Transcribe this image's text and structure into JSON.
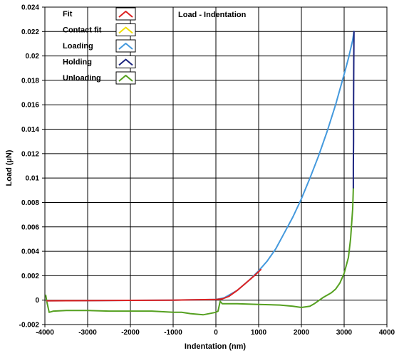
{
  "chart_data": {
    "type": "line",
    "title": "Load - Indentation",
    "xlabel": "Indentation (nm)",
    "ylabel": "Load (µN)",
    "xlim": [
      -4000,
      4000
    ],
    "ylim": [
      -0.002,
      0.024
    ],
    "xticks": [
      -4000,
      -3000,
      -2000,
      -1000,
      0,
      1000,
      2000,
      3000,
      4000
    ],
    "xtick_labels": [
      "-4000",
      "-3000",
      "-2000",
      "-1000",
      "0",
      "1000",
      "2000",
      "3000",
      "4000"
    ],
    "yticks": [
      -0.002,
      0,
      0.002,
      0.004,
      0.006,
      0.008,
      0.01,
      0.012,
      0.014,
      0.016,
      0.018,
      0.02,
      0.022,
      0.024
    ],
    "ytick_labels": [
      "-0.002",
      "0",
      "0.002",
      "0.004",
      "0.006",
      "0.008",
      "0.01",
      "0.012",
      "0.014",
      "0.016",
      "0.018",
      "0.02",
      "0.022",
      "0.024"
    ],
    "grid": true,
    "legend_position": "top-left",
    "series": [
      {
        "name": "Fit",
        "color": "#dd2222",
        "x": [
          -3950,
          -3000,
          -2000,
          -1000,
          0,
          150,
          300,
          500,
          700,
          900,
          1050
        ],
        "y": [
          -5e-05,
          -4e-05,
          -2e-05,
          0.0,
          5e-05,
          0.0001,
          0.0003,
          0.0008,
          0.0014,
          0.002,
          0.0025
        ]
      },
      {
        "name": "Contact fit",
        "color": "#f0e000",
        "x": [],
        "y": []
      },
      {
        "name": "Loading",
        "color": "#4499dd",
        "x": [
          -3950,
          -3000,
          -2000,
          -1000,
          0,
          200,
          500,
          800,
          1000,
          1200,
          1400,
          1600,
          1800,
          2000,
          2200,
          2400,
          2600,
          2800,
          3000,
          3100,
          3200,
          3230
        ],
        "y": [
          -5e-05,
          -4e-05,
          -2e-05,
          0.0,
          5e-05,
          0.0002,
          0.0008,
          0.0017,
          0.0024,
          0.0032,
          0.0042,
          0.0055,
          0.0068,
          0.0083,
          0.01,
          0.0118,
          0.0138,
          0.016,
          0.0185,
          0.0198,
          0.0213,
          0.022
        ]
      },
      {
        "name": "Holding",
        "color": "#1a237e",
        "x": [
          3230,
          3225,
          3220,
          3220,
          3215,
          3215
        ],
        "y": [
          0.022,
          0.0195,
          0.016,
          0.013,
          0.011,
          0.0092
        ]
      },
      {
        "name": "Unloading",
        "color": "#55a020",
        "x": [
          3215,
          3200,
          3150,
          3100,
          3000,
          2900,
          2800,
          2700,
          2500,
          2300,
          2200,
          2000,
          1800,
          1500,
          1000,
          500,
          150,
          100,
          50,
          0,
          -300,
          -600,
          -800,
          -1000,
          -1500,
          -2000,
          -2500,
          -3000,
          -3500,
          -3800,
          -3900,
          -3950,
          -3980
        ],
        "y": [
          0.0092,
          0.0075,
          0.005,
          0.0035,
          0.0022,
          0.0014,
          0.0009,
          0.0006,
          0.0002,
          -0.0003,
          -0.0005,
          -0.0006,
          -0.0005,
          -0.0004,
          -0.00035,
          -0.0003,
          -0.0003,
          -0.0001,
          -0.0009,
          -0.001,
          -0.0012,
          -0.0011,
          -0.001,
          -0.001,
          -0.0009,
          -0.0009,
          -0.0009,
          -0.00085,
          -0.00085,
          -0.0009,
          -0.001,
          -0.0002,
          0.0004
        ]
      }
    ]
  }
}
